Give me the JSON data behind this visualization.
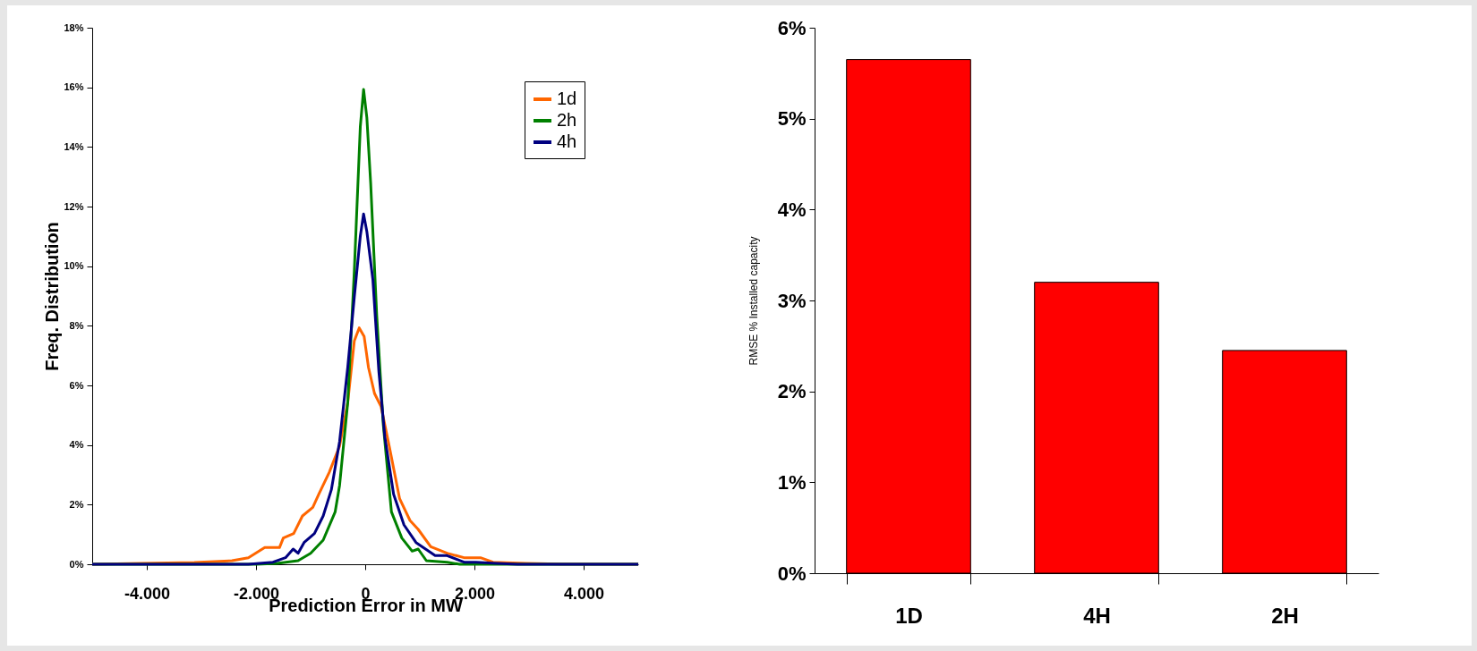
{
  "chart_data": [
    {
      "type": "line",
      "xlabel": "Prediction Error in MW",
      "ylabel": "Freq. Distribution",
      "xlim": [
        -5000,
        5000
      ],
      "ylim": [
        0,
        18
      ],
      "xticks": [
        {
          "value": -4000,
          "label": "-4.000"
        },
        {
          "value": -2000,
          "label": "-2.000"
        },
        0,
        {
          "value": 2000,
          "label": "2.000"
        },
        {
          "value": 4000,
          "label": "4.000"
        }
      ],
      "yticks": [
        {
          "value": 0,
          "label": "0%"
        },
        {
          "value": 2,
          "label": "2%"
        },
        {
          "value": 4,
          "label": "4%"
        },
        {
          "value": 6,
          "label": "6%"
        },
        {
          "value": 8,
          "label": "8%"
        },
        {
          "value": 10,
          "label": "10%"
        },
        {
          "value": 12,
          "label": "12%"
        },
        {
          "value": 14,
          "label": "14%"
        },
        {
          "value": 16,
          "label": "16%"
        },
        {
          "value": 18,
          "label": "18%"
        }
      ],
      "grid": false,
      "legend": "top right",
      "marker": "none",
      "line_style": "solid",
      "series": [
        {
          "name": "1d",
          "color": "#ff6600",
          "x": [
            -5000,
            -4110,
            -3130,
            -2440,
            -2140,
            -1840,
            -1570,
            -1500,
            -1310,
            -1150,
            -960,
            -850,
            -660,
            -470,
            -320,
            -200,
            -110,
            -20,
            60,
            170,
            290,
            440,
            630,
            820,
            970,
            1200,
            1500,
            1810,
            2110,
            2340,
            2950,
            3560,
            5000
          ],
          "values": [
            0,
            0.03,
            0.06,
            0.12,
            0.22,
            0.56,
            0.56,
            0.88,
            1.03,
            1.62,
            1.91,
            2.35,
            3.08,
            3.96,
            5.43,
            7.49,
            7.93,
            7.64,
            6.6,
            5.73,
            5.29,
            3.96,
            2.2,
            1.47,
            1.17,
            0.59,
            0.37,
            0.22,
            0.22,
            0.07,
            0.03,
            0.01,
            0
          ]
        },
        {
          "name": "2h",
          "color": "#008000",
          "x": [
            -5000,
            -1990,
            -1610,
            -1230,
            -1000,
            -770,
            -550,
            -470,
            -320,
            -200,
            -90,
            -30,
            30,
            100,
            210,
            330,
            480,
            670,
            860,
            970,
            1120,
            1500,
            1730,
            5000
          ],
          "values": [
            0,
            0,
            0.03,
            0.12,
            0.37,
            0.81,
            1.76,
            2.64,
            5.43,
            9.84,
            14.68,
            15.93,
            14.98,
            12.78,
            8.37,
            4.7,
            1.76,
            0.88,
            0.44,
            0.51,
            0.12,
            0.07,
            0,
            0
          ]
        },
        {
          "name": "4h",
          "color": "#000080",
          "x": [
            -5000,
            -2140,
            -1690,
            -1460,
            -1320,
            -1230,
            -1120,
            -930,
            -770,
            -620,
            -470,
            -320,
            -200,
            -90,
            -30,
            30,
            140,
            250,
            360,
            520,
            710,
            930,
            1280,
            1500,
            1810,
            2030,
            2410,
            2790,
            5000
          ],
          "values": [
            0,
            0,
            0.07,
            0.22,
            0.51,
            0.37,
            0.73,
            1.03,
            1.62,
            2.5,
            4.11,
            6.61,
            8.96,
            11.01,
            11.75,
            11.16,
            9.55,
            6.46,
            4.26,
            2.35,
            1.32,
            0.73,
            0.29,
            0.29,
            0.07,
            0.07,
            0.03,
            0,
            0
          ]
        }
      ]
    },
    {
      "type": "bar",
      "ylabel": "RMSE % Installed capacity",
      "categories": [
        "1D",
        "4H",
        "2H"
      ],
      "values": [
        5.65,
        3.2,
        2.45
      ],
      "color": "#ff0000",
      "ylim": [
        0,
        6
      ],
      "yticks": [
        {
          "value": 0,
          "label": "0%"
        },
        {
          "value": 1,
          "label": "1%"
        },
        {
          "value": 2,
          "label": "2%"
        },
        {
          "value": 3,
          "label": "3%"
        },
        {
          "value": 4,
          "label": "4%"
        },
        {
          "value": 5,
          "label": "5%"
        },
        {
          "value": 6,
          "label": "6%"
        }
      ],
      "grid": false
    }
  ]
}
